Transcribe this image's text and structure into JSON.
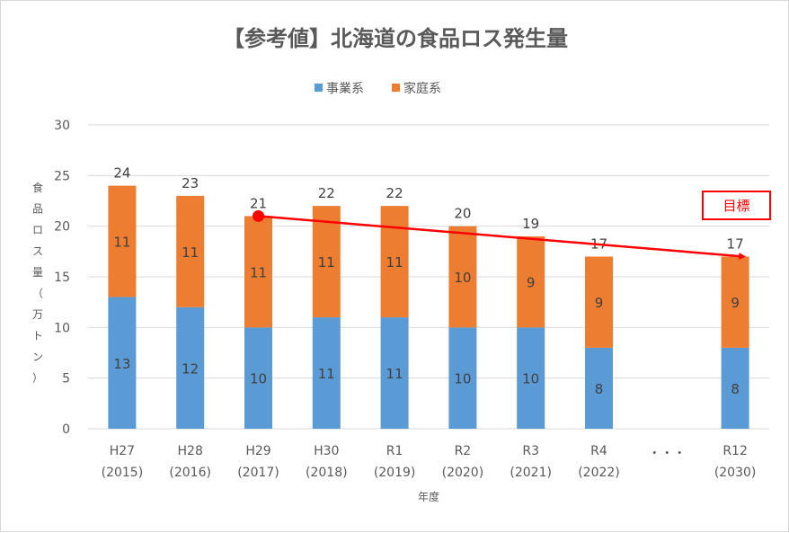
{
  "chart_data": {
    "type": "bar",
    "stacked": true,
    "title": "【参考値】北海道の食品ロス発生量",
    "xlabel": "年度",
    "ylabel": "食品ロス量（万トン）",
    "ylim": [
      0,
      30
    ],
    "yticks": [
      0,
      5,
      10,
      15,
      20,
      25,
      30
    ],
    "grid": true,
    "legend": "top",
    "categories": [
      {
        "line1": "H27",
        "line2": "(2015)"
      },
      {
        "line1": "H28",
        "line2": "(2016)"
      },
      {
        "line1": "H29",
        "line2": "(2017)"
      },
      {
        "line1": "H30",
        "line2": "(2018)"
      },
      {
        "line1": "R1",
        "line2": "(2019)"
      },
      {
        "line1": "R2",
        "line2": "(2020)"
      },
      {
        "line1": "R3",
        "line2": "(2021)"
      },
      {
        "line1": "R4",
        "line2": "(2022)"
      },
      {
        "line1": "・・・",
        "line2": ""
      },
      {
        "line1": "R12",
        "line2": "(2030)"
      }
    ],
    "series": [
      {
        "name": "事業系",
        "color": "#5b9bd5",
        "values": [
          13,
          12,
          10,
          11,
          11,
          10,
          10,
          8,
          null,
          8
        ]
      },
      {
        "name": "家庭系",
        "color": "#ed7d31",
        "values": [
          11,
          11,
          11,
          11,
          11,
          10,
          9,
          9,
          null,
          9
        ]
      }
    ],
    "totals": [
      24,
      23,
      21,
      22,
      22,
      20,
      19,
      17,
      null,
      17
    ],
    "annotation": {
      "label": "目標",
      "color": "#ff0000",
      "arrow_from": {
        "category": "H29 (2017)",
        "value": 21
      },
      "arrow_to": {
        "category": "R12 (2030)",
        "value": 17
      }
    }
  }
}
